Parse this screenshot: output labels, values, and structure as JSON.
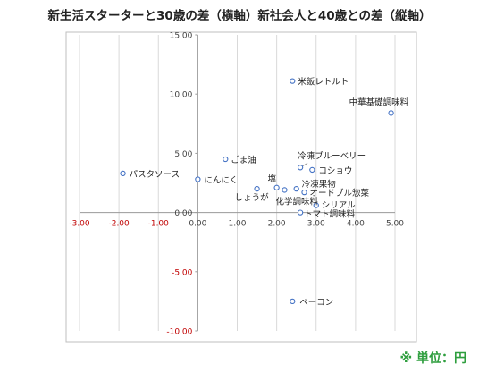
{
  "title": "新生活スターターと30歳の差（横軸）新社会人と40歳との差（縦軸）",
  "unit_note": "※ 単位：円",
  "colors": {
    "point": "#4472c4",
    "axis": "#999999",
    "grid": "#d9d9d9",
    "negative_tick": "#c00000",
    "frame": "#bfbfbf",
    "unit_note": "#2e9e3e"
  },
  "chart_data": {
    "type": "scatter",
    "title": "新生活スターターと30歳の差（横軸）新社会人と40歳との差（縦軸）",
    "xlabel": "",
    "ylabel": "",
    "xlim": [
      -3,
      5
    ],
    "ylim": [
      -10,
      15
    ],
    "grid": "vertical",
    "x_ticks": [
      "-3.00",
      "-2.00",
      "-1.00",
      "0.00",
      "1.00",
      "2.00",
      "3.00",
      "4.00",
      "5.00"
    ],
    "y_ticks": [
      "15.00",
      "10.00",
      "5.00",
      "0.00",
      "-5.00",
      "-10.00"
    ],
    "points": [
      {
        "label": "米飯レトルト",
        "x": 2.4,
        "y": 11.1
      },
      {
        "label": "中華基礎調味料",
        "x": 4.9,
        "y": 8.4
      },
      {
        "label": "ごま油",
        "x": 0.7,
        "y": 4.5
      },
      {
        "label": "パスタソース",
        "x": -1.9,
        "y": 3.3
      },
      {
        "label": "にんにく",
        "x": 0.0,
        "y": 2.8
      },
      {
        "label": "冷凍ブルーベリー",
        "x": 2.6,
        "y": 3.8
      },
      {
        "label": "コショウ",
        "x": 2.9,
        "y": 3.6
      },
      {
        "label": "塩",
        "x": 2.0,
        "y": 2.1
      },
      {
        "label": "しょうが",
        "x": 1.5,
        "y": 2.0
      },
      {
        "label": "冷凍果物",
        "x": 2.5,
        "y": 2.0
      },
      {
        "label": "オードブル惣菜",
        "x": 2.7,
        "y": 1.7
      },
      {
        "label": "化学調味料",
        "x": 2.2,
        "y": 1.9
      },
      {
        "label": "シリアル",
        "x": 3.0,
        "y": 0.6
      },
      {
        "label": "トマト調味料",
        "x": 2.6,
        "y": 0.0
      },
      {
        "label": "ベーコン",
        "x": 2.4,
        "y": -7.5
      }
    ]
  }
}
